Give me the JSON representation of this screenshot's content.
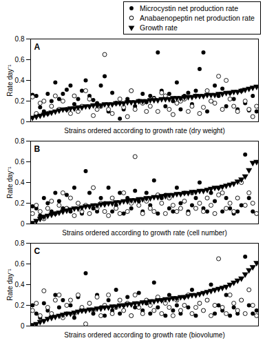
{
  "chart_data": [
    {
      "type": "scatter",
      "title": "A",
      "x_label": "Strains ordered according to growth rate (dry weight)",
      "y_label": "Rate day⁻¹",
      "ylim": [
        0,
        0.8
      ],
      "yticks": [
        0,
        0.2,
        0.4,
        0.6,
        0.8
      ],
      "tick_labels": "y",
      "legend": "top-right",
      "categories": [
        null,
        null,
        null,
        null,
        null,
        null,
        null,
        null,
        null,
        null,
        null,
        null,
        null,
        null,
        null,
        null,
        null,
        null,
        null,
        null,
        null,
        null,
        null,
        null,
        null,
        null,
        null,
        null,
        null,
        null,
        null,
        null,
        null,
        null,
        null,
        null,
        null,
        null,
        null,
        null,
        null,
        null,
        null,
        null,
        null,
        null,
        null,
        null,
        null,
        null,
        null,
        null,
        null,
        null,
        null,
        null,
        null,
        null,
        null,
        null
      ],
      "series": [
        {
          "name": "Microcystin net production rate",
          "color": "#000000",
          "marker": "circle",
          "values": [
            0.26,
            0.25,
            0.14,
            0.1,
            0.27,
            0.2,
            0.38,
            0.22,
            0.27,
            0.31,
            0.35,
            0.17,
            0.22,
            0.3,
            0.4,
            0.25,
            0.21,
            0.18,
            0.35,
            0.44,
            0.1,
            0.28,
            0.18,
            0.03,
            0.12,
            0.22,
            0.3,
            0.15,
            0.2,
            0.27,
            0.19,
            0.25,
            0.23,
            0.67,
            0.3,
            0.15,
            0.27,
            0.2,
            0.38,
            0.12,
            0.25,
            0.28,
            0.17,
            0.3,
            0.51,
            0.67,
            0.1,
            0.2,
            0.35,
            0.25,
            0.32,
            0.15,
            0.28,
            0.22,
            0.12,
            0.3,
            0.18,
            0.11,
            0.25,
            0.1
          ]
        },
        {
          "name": "Anabaenopeptin net production rate",
          "color": "#000000",
          "marker": "open_circle",
          "values": [
            0.24,
            0.08,
            0.18,
            0.2,
            0.08,
            0.15,
            0.25,
            0.12,
            0.2,
            0.12,
            0.08,
            0.25,
            0.1,
            0.15,
            0.3,
            0.22,
            0.06,
            0.12,
            0.15,
            0.65,
            0.12,
            0.08,
            0.18,
            0.22,
            0.14,
            0.05,
            0.3,
            0.12,
            0.2,
            0.18,
            0.1,
            0.15,
            0.22,
            0.1,
            0.28,
            0.25,
            0.12,
            0.07,
            0.18,
            0.2,
            0.22,
            0.1,
            0.15,
            0.25,
            0.08,
            0.14,
            0.3,
            0.2,
            0.18,
            0.44,
            0.12,
            0.4,
            0.22,
            0.15,
            0.1,
            0.3,
            0.2,
            0.12,
            0.05,
            0.15
          ]
        },
        {
          "name": "Growth rate",
          "color": "#000000",
          "marker": "triangle_down",
          "values": [
            0.04,
            0.05,
            0.06,
            0.07,
            0.08,
            0.09,
            0.1,
            0.11,
            0.12,
            0.12,
            0.13,
            0.13,
            0.14,
            0.14,
            0.15,
            0.15,
            0.16,
            0.16,
            0.16,
            0.17,
            0.17,
            0.17,
            0.18,
            0.18,
            0.18,
            0.19,
            0.19,
            0.19,
            0.2,
            0.2,
            0.2,
            0.21,
            0.21,
            0.21,
            0.22,
            0.22,
            0.22,
            0.23,
            0.23,
            0.23,
            0.24,
            0.24,
            0.24,
            0.25,
            0.25,
            0.25,
            0.26,
            0.26,
            0.26,
            0.27,
            0.27,
            0.28,
            0.28,
            0.29,
            0.29,
            0.3,
            0.31,
            0.32,
            0.33,
            0.34
          ]
        }
      ]
    },
    {
      "type": "scatter",
      "title": "B",
      "x_label": "Strains ordered according to growth rate (cell number)",
      "y_label": "Rate day⁻¹",
      "ylim": [
        0,
        0.8
      ],
      "yticks": [
        0,
        0.2,
        0.4,
        0.6,
        0.8
      ],
      "tick_labels": "y",
      "categories": [
        null,
        null,
        null,
        null,
        null,
        null,
        null,
        null,
        null,
        null,
        null,
        null,
        null,
        null,
        null,
        null,
        null,
        null,
        null,
        null,
        null,
        null,
        null,
        null,
        null,
        null,
        null,
        null,
        null,
        null,
        null,
        null,
        null,
        null,
        null,
        null,
        null,
        null,
        null,
        null,
        null,
        null,
        null,
        null,
        null,
        null,
        null,
        null,
        null,
        null,
        null,
        null,
        null,
        null,
        null,
        null,
        null,
        null,
        null,
        null
      ],
      "series": [
        {
          "name": "Microcystin net production rate",
          "color": "#000000",
          "marker": "circle",
          "values": [
            0.17,
            0.15,
            0.08,
            0.25,
            0.2,
            0.12,
            0.3,
            0.22,
            0.15,
            0.28,
            0.12,
            0.35,
            0.2,
            0.1,
            0.51,
            0.3,
            0.15,
            0.12,
            0.25,
            0.2,
            0.35,
            0.12,
            0.18,
            0.3,
            0.1,
            0.25,
            0.15,
            0.32,
            0.22,
            0.12,
            0.3,
            0.18,
            0.42,
            0.1,
            0.25,
            0.28,
            0.15,
            0.12,
            0.35,
            0.2,
            0.3,
            0.12,
            0.18,
            0.25,
            0.4,
            0.15,
            0.12,
            0.3,
            0.22,
            0.35,
            0.12,
            0.25,
            0.15,
            0.1,
            0.12,
            0.18,
            0.67,
            0.25,
            0.12,
            0.1
          ]
        },
        {
          "name": "Anabaenopeptin net production rate",
          "color": "#000000",
          "marker": "open_circle",
          "values": [
            0.1,
            0.18,
            0.12,
            0.05,
            0.15,
            0.22,
            0.1,
            0.18,
            0.3,
            0.15,
            0.25,
            0.08,
            0.2,
            0.12,
            0.18,
            0.1,
            0.35,
            0.15,
            0.2,
            0.12,
            0.08,
            0.25,
            0.15,
            0.1,
            0.3,
            0.12,
            0.2,
            0.65,
            0.18,
            0.1,
            0.22,
            0.15,
            0.12,
            0.28,
            0.2,
            0.1,
            0.25,
            0.18,
            0.12,
            0.15,
            0.22,
            0.1,
            0.3,
            0.15,
            0.2,
            0.12,
            0.25,
            0.18,
            0.1,
            0.28,
            0.3,
            0.15,
            0.2,
            0.12,
            0.25,
            0.4,
            0.18,
            0.3,
            0.2,
            0.1
          ]
        },
        {
          "name": "Growth rate",
          "color": "#000000",
          "marker": "triangle_down",
          "values": [
            0.01,
            0.03,
            0.05,
            0.07,
            0.08,
            0.09,
            0.1,
            0.11,
            0.12,
            0.13,
            0.14,
            0.15,
            0.15,
            0.16,
            0.17,
            0.17,
            0.18,
            0.18,
            0.19,
            0.19,
            0.2,
            0.2,
            0.21,
            0.21,
            0.22,
            0.22,
            0.23,
            0.23,
            0.24,
            0.24,
            0.25,
            0.25,
            0.26,
            0.26,
            0.27,
            0.27,
            0.28,
            0.28,
            0.29,
            0.29,
            0.3,
            0.3,
            0.31,
            0.31,
            0.32,
            0.32,
            0.33,
            0.34,
            0.35,
            0.35,
            0.36,
            0.37,
            0.38,
            0.39,
            0.41,
            0.43,
            0.46,
            0.52,
            0.59,
            0.6
          ]
        }
      ]
    },
    {
      "type": "scatter",
      "title": "C",
      "x_label": "Strains ordered according to growth rate (biovolume)",
      "y_label": "Rate day⁻¹",
      "ylim": [
        0,
        0.8
      ],
      "yticks": [
        0,
        0.2,
        0.4,
        0.6,
        0.8
      ],
      "tick_labels": "y",
      "categories": [
        null,
        null,
        null,
        null,
        null,
        null,
        null,
        null,
        null,
        null,
        null,
        null,
        null,
        null,
        null,
        null,
        null,
        null,
        null,
        null,
        null,
        null,
        null,
        null,
        null,
        null,
        null,
        null,
        null,
        null,
        null,
        null,
        null,
        null,
        null,
        null,
        null,
        null,
        null,
        null,
        null,
        null,
        null,
        null,
        null,
        null,
        null,
        null,
        null,
        null,
        null,
        null,
        null,
        null,
        null,
        null,
        null,
        null,
        null,
        null
      ],
      "series": [
        {
          "name": "Microcystin net production rate",
          "color": "#000000",
          "marker": "circle",
          "values": [
            0.2,
            0.12,
            0.08,
            0.22,
            0.15,
            0.1,
            0.3,
            0.18,
            0.25,
            0.12,
            0.2,
            0.08,
            0.28,
            0.15,
            0.51,
            0.22,
            0.12,
            0.3,
            0.18,
            0.1,
            0.25,
            0.15,
            0.35,
            0.12,
            0.2,
            0.28,
            0.1,
            0.18,
            0.32,
            0.15,
            0.22,
            0.12,
            0.42,
            0.18,
            0.25,
            0.1,
            0.3,
            0.15,
            0.2,
            0.12,
            0.28,
            0.18,
            0.35,
            0.1,
            0.22,
            0.15,
            0.25,
            0.4,
            0.12,
            0.2,
            0.15,
            0.3,
            0.1,
            0.18,
            0.12,
            0.25,
            0.67,
            0.2,
            0.12,
            0.15
          ]
        },
        {
          "name": "Anabaenopeptin net production rate",
          "color": "#000000",
          "marker": "open_circle",
          "values": [
            0.15,
            0.22,
            0.1,
            0.34,
            0.18,
            0.12,
            0.25,
            0.3,
            0.08,
            0.2,
            0.25,
            0.12,
            0.3,
            0.18,
            0.02,
            0.22,
            0.15,
            0.28,
            0.1,
            0.2,
            0.3,
            0.12,
            0.18,
            0.25,
            0.15,
            0.22,
            0.1,
            0.3,
            0.18,
            0.12,
            0.25,
            0.2,
            0.15,
            0.28,
            0.12,
            0.22,
            0.18,
            0.1,
            0.25,
            0.15,
            0.2,
            0.3,
            0.12,
            0.18,
            0.22,
            0.15,
            0.25,
            0.1,
            0.2,
            0.65,
            0.18,
            0.12,
            0.3,
            0.22,
            0.15,
            0.25,
            0.12,
            0.35,
            0.2,
            0.1
          ]
        },
        {
          "name": "Growth rate",
          "color": "#000000",
          "marker": "triangle_down",
          "values": [
            0.01,
            0.02,
            0.04,
            0.05,
            0.07,
            0.08,
            0.09,
            0.1,
            0.11,
            0.12,
            0.12,
            0.13,
            0.14,
            0.15,
            0.15,
            0.16,
            0.16,
            0.17,
            0.17,
            0.18,
            0.18,
            0.19,
            0.19,
            0.2,
            0.2,
            0.21,
            0.21,
            0.22,
            0.22,
            0.23,
            0.23,
            0.24,
            0.24,
            0.25,
            0.25,
            0.26,
            0.26,
            0.27,
            0.27,
            0.28,
            0.28,
            0.29,
            0.3,
            0.3,
            0.31,
            0.32,
            0.33,
            0.34,
            0.35,
            0.36,
            0.37,
            0.38,
            0.4,
            0.42,
            0.44,
            0.46,
            0.5,
            0.54,
            0.57,
            0.61
          ]
        }
      ]
    }
  ]
}
